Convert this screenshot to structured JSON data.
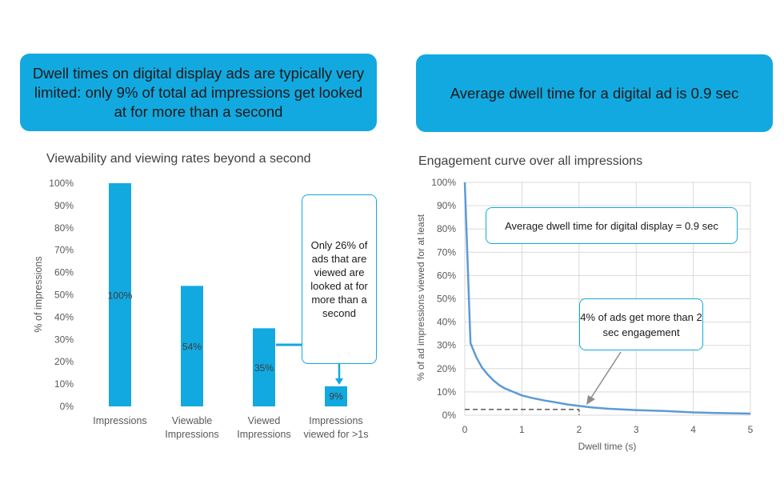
{
  "banners": {
    "left": "Dwell times on digital display ads are typically very limited: only 9% of total ad impressions get looked at for more than a second",
    "right": "Average dwell time for a digital ad is 0.9 sec"
  },
  "callouts": {
    "viewed": "Only 26% of ads that are viewed are looked at for more than a second",
    "average": "Average dwell time for digital display = 0.9 sec",
    "two_sec": "4% of ads get more than 2 sec engagement"
  },
  "colors": {
    "accent": "#12A9E0",
    "bar": "#12A9E0",
    "line": "#5B9BD5"
  },
  "chart_data": [
    {
      "type": "bar",
      "title": "Viewability and viewing rates beyond a second",
      "ylabel": "% of impressions",
      "xlabel": "",
      "ylim": [
        0,
        100
      ],
      "yticks": [
        "0%",
        "10%",
        "20%",
        "30%",
        "40%",
        "50%",
        "60%",
        "70%",
        "80%",
        "90%",
        "100%"
      ],
      "categories": [
        [
          "Impressions"
        ],
        [
          "Viewable",
          "Impressions"
        ],
        [
          "Viewed",
          "Impressions"
        ],
        [
          "Impressions",
          "viewed for >1s"
        ]
      ],
      "values": [
        100,
        54,
        35,
        9
      ],
      "value_labels": [
        "100%",
        "54%",
        "35%",
        "9%"
      ],
      "grid": false
    },
    {
      "type": "line",
      "title": "Engagement curve over all impressions",
      "xlabel": "Dwell time (s)",
      "ylabel": "% of ad impressions viewed for at least",
      "xlim": [
        0,
        5
      ],
      "ylim": [
        0,
        100
      ],
      "xticks": [
        "0",
        "1",
        "2",
        "3",
        "4",
        "5"
      ],
      "yticks": [
        "0%",
        "10%",
        "20%",
        "30%",
        "40%",
        "50%",
        "60%",
        "70%",
        "80%",
        "90%",
        "100%"
      ],
      "grid": true,
      "x": [
        0,
        0.1,
        0.2,
        0.3,
        0.4,
        0.5,
        0.6,
        0.7,
        0.8,
        0.9,
        1.0,
        1.2,
        1.4,
        1.6,
        1.8,
        2.0,
        2.2,
        2.5,
        3.0,
        3.5,
        4.0,
        4.5,
        5.0
      ],
      "y": [
        100,
        31,
        25,
        20.5,
        17.5,
        15,
        13,
        11.5,
        10.5,
        9.5,
        8.5,
        7.3,
        6.3,
        5.5,
        4.6,
        4,
        3.4,
        2.8,
        2.2,
        1.8,
        1.2,
        0.9,
        0.7
      ],
      "reference_y": 2.5,
      "reference_x": 2
    }
  ]
}
